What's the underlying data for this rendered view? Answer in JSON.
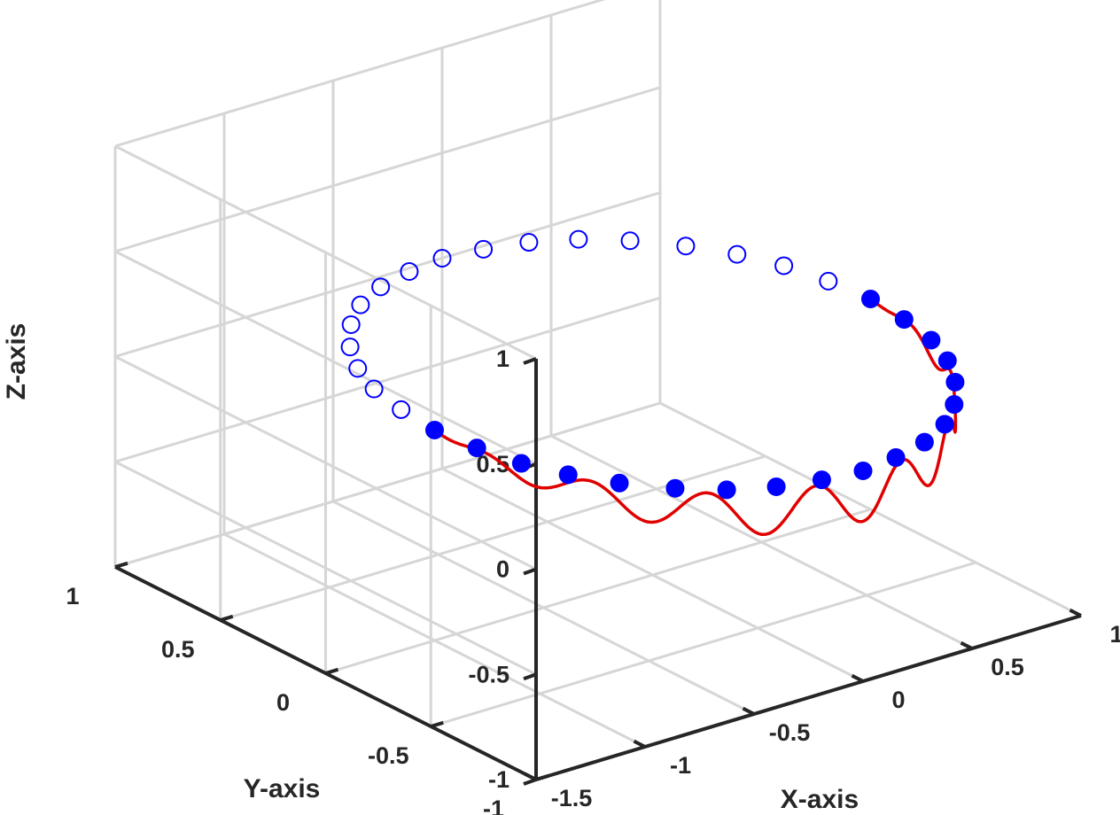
{
  "chart_data": {
    "type": "scatter3d",
    "title": "",
    "xlabel": "X-axis",
    "ylabel": "Y-axis",
    "zlabel": "Z-axis",
    "xlim": [
      -1.5,
      1
    ],
    "ylim": [
      -1,
      1
    ],
    "zlim": [
      -1,
      1
    ],
    "xticks": [
      "-1.5",
      "-1",
      "-0.5",
      "0",
      "0.5",
      "1"
    ],
    "yticks": [
      "-1",
      "-0.5",
      "0",
      "0.5",
      "1"
    ],
    "zticks": [
      "-1",
      "-0.5",
      "0",
      "0.5",
      "1"
    ],
    "grid": true,
    "view": "3d-isometric",
    "series": [
      {
        "kind": "line",
        "color": "#e00000",
        "description_values": {
          "x": [
            -1.0,
            -0.995,
            -0.982,
            -0.959,
            -0.928,
            -0.889,
            -0.842,
            -0.788,
            -0.727,
            -0.66,
            -0.588,
            -0.511,
            -0.43,
            -0.346,
            -0.26,
            -0.172,
            -0.083,
            0.006,
            0.095,
            0.183,
            0.27,
            0.355,
            0.437,
            0.515,
            0.589,
            0.658,
            0.722,
            0.78,
            0.832,
            0.877,
            0.915,
            0.946,
            0.97,
            0.987,
            0.997,
            1.0
          ],
          "y": [
            0.0,
            -0.1,
            -0.19,
            -0.28,
            -0.37,
            -0.46,
            -0.54,
            -0.62,
            -0.69,
            -0.75,
            -0.81,
            -0.86,
            -0.9,
            -0.94,
            -0.97,
            -0.99,
            -1.0,
            -1.0,
            -1.0,
            -0.98,
            -0.96,
            -0.93,
            -0.9,
            -0.86,
            -0.81,
            -0.75,
            -0.69,
            -0.62,
            -0.55,
            -0.48,
            -0.4,
            -0.32,
            -0.24,
            -0.16,
            -0.08,
            0.0
          ],
          "z": [
            0.0,
            -0.01,
            -0.03,
            -0.05,
            -0.07,
            -0.09,
            -0.1,
            -0.12,
            -0.13,
            -0.14,
            -0.15,
            -0.16,
            -0.2,
            -0.1,
            -0.25,
            -0.05,
            -0.27,
            -0.06,
            -0.26,
            -0.08,
            -0.27,
            -0.03,
            -0.25,
            -0.05,
            -0.22,
            -0.1,
            -0.15,
            -0.12,
            -0.1,
            -0.08,
            -0.06,
            -0.05,
            -0.03,
            -0.02,
            -0.01,
            0.0
          ]
        }
      },
      {
        "kind": "markers-filled",
        "color": "#0000ff",
        "points": [
          [
            -1.0,
            0.0,
            0.0
          ],
          [
            -0.98,
            -0.18,
            0.0
          ],
          [
            -0.94,
            -0.35,
            0.0
          ],
          [
            -0.87,
            -0.5,
            0.0
          ],
          [
            -0.77,
            -0.64,
            0.0
          ],
          [
            -0.64,
            -0.77,
            0.0
          ],
          [
            -0.5,
            -0.87,
            0.0
          ],
          [
            -0.34,
            -0.94,
            0.0
          ],
          [
            -0.17,
            -0.98,
            0.0
          ],
          [
            0.0,
            -1.0,
            0.0
          ],
          [
            0.17,
            -0.98,
            0.0
          ],
          [
            0.34,
            -0.94,
            0.0
          ],
          [
            0.5,
            -0.87,
            0.0
          ],
          [
            0.64,
            -0.77,
            0.0
          ],
          [
            0.77,
            -0.64,
            0.0
          ],
          [
            0.87,
            -0.5,
            0.0
          ],
          [
            0.94,
            -0.35,
            0.0
          ],
          [
            0.98,
            -0.18,
            0.0
          ],
          [
            1.0,
            0.0,
            0.0
          ]
        ]
      },
      {
        "kind": "markers-open",
        "color": "#0000ff",
        "points": [
          [
            0.98,
            0.18,
            0.0
          ],
          [
            0.94,
            0.35,
            0.0
          ],
          [
            0.87,
            0.5,
            0.0
          ],
          [
            0.77,
            0.64,
            0.0
          ],
          [
            0.64,
            0.77,
            0.0
          ],
          [
            0.5,
            0.87,
            0.0
          ],
          [
            0.34,
            0.94,
            0.0
          ],
          [
            0.17,
            0.98,
            0.0
          ],
          [
            0.0,
            1.0,
            0.0
          ],
          [
            -0.17,
            0.98,
            0.0
          ],
          [
            -0.34,
            0.94,
            0.0
          ],
          [
            -0.5,
            0.87,
            0.0
          ],
          [
            -0.64,
            0.77,
            0.0
          ],
          [
            -0.77,
            0.64,
            0.0
          ],
          [
            -0.87,
            0.5,
            0.0
          ],
          [
            -0.94,
            0.35,
            0.0
          ],
          [
            -0.98,
            0.18,
            0.0
          ]
        ]
      }
    ]
  }
}
